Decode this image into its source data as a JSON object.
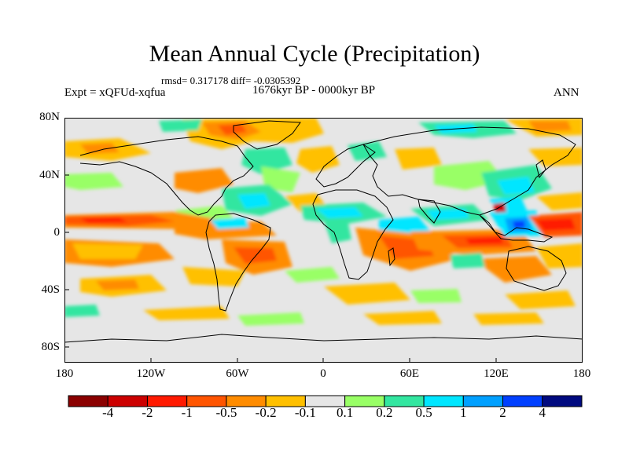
{
  "title": "Mean Annual Cycle (Precipitation)",
  "stats": "rmsd= 0.317178  diff= -0.0305392",
  "period": "1676kyr BP - 0000kyr BP",
  "experiment": "Expt = xQFUd-xqfua",
  "season": "ANN",
  "lat_labels": [
    "80N",
    "40N",
    "0",
    "40S",
    "80S"
  ],
  "lon_labels": [
    "180",
    "120W",
    "60W",
    "0",
    "60E",
    "120E",
    "180"
  ],
  "colorbar": {
    "labels": [
      "-4",
      "-2",
      "-1",
      "-0.5",
      "-0.2",
      "-0.1",
      "0.1",
      "0.2",
      "0.5",
      "1",
      "2",
      "4"
    ],
    "colors": [
      "#8b0000",
      "#cc0000",
      "#ff1a00",
      "#ff5500",
      "#ff8c00",
      "#ffc000",
      "#e6e6e6",
      "#99ff66",
      "#33e6a0",
      "#00e6ff",
      "#00a0ff",
      "#0040ff",
      "#000a80"
    ]
  },
  "map_colors": {
    "ocean": "#e6e6e6",
    "outline": "#000000"
  }
}
